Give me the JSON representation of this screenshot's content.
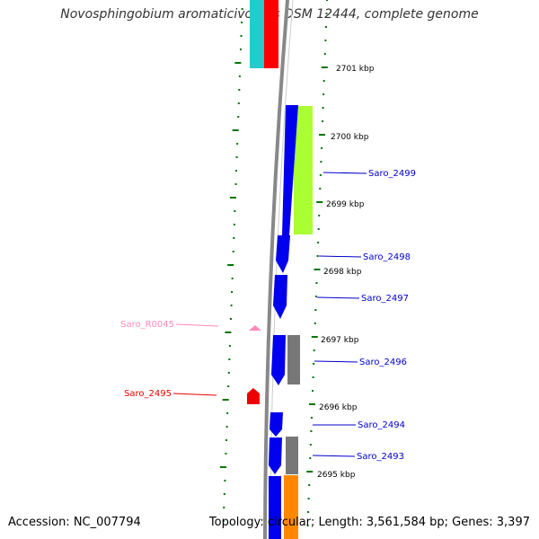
{
  "title": "Novosphingobium aromaticivorans DSM 12444, complete genome",
  "accession": "Accession: NC_007794",
  "topology": "Topology: circular; Length: 3,561,584 bp; Genes: 3,397",
  "kbp_ticks": [
    {
      "label": "2701 kbp"
    },
    {
      "label": "2700 kbp"
    },
    {
      "label": "2699 kbp"
    },
    {
      "label": "2698 kbp"
    },
    {
      "label": "2697 kbp"
    },
    {
      "label": "2696 kbp"
    },
    {
      "label": "2695 kbp"
    }
  ],
  "gene_labels": [
    {
      "label": "Saro_2499",
      "color": "#0000cc"
    },
    {
      "label": "Saro_2498",
      "color": "#0000cc"
    },
    {
      "label": "Saro_2497",
      "color": "#0000cc"
    },
    {
      "label": "Saro_2496",
      "color": "#0000cc"
    },
    {
      "label": "Saro_2494",
      "color": "#0000cc"
    },
    {
      "label": "Saro_2493",
      "color": "#0000cc"
    },
    {
      "label": "Saro_R0045",
      "color": "#ff88bb"
    },
    {
      "label": "Saro_2495",
      "color": "#ee0000"
    }
  ],
  "colors": {
    "cds_forward": "#0000ee",
    "cds_other": "#777777",
    "highlight_green": "#aaff33",
    "highlight_cyan": "#22cccc",
    "highlight_red": "#ff0000",
    "highlight_orange": "#ff8800",
    "trna": "#ff88bb",
    "backbone": "#888888",
    "tick_green": "#007700"
  }
}
